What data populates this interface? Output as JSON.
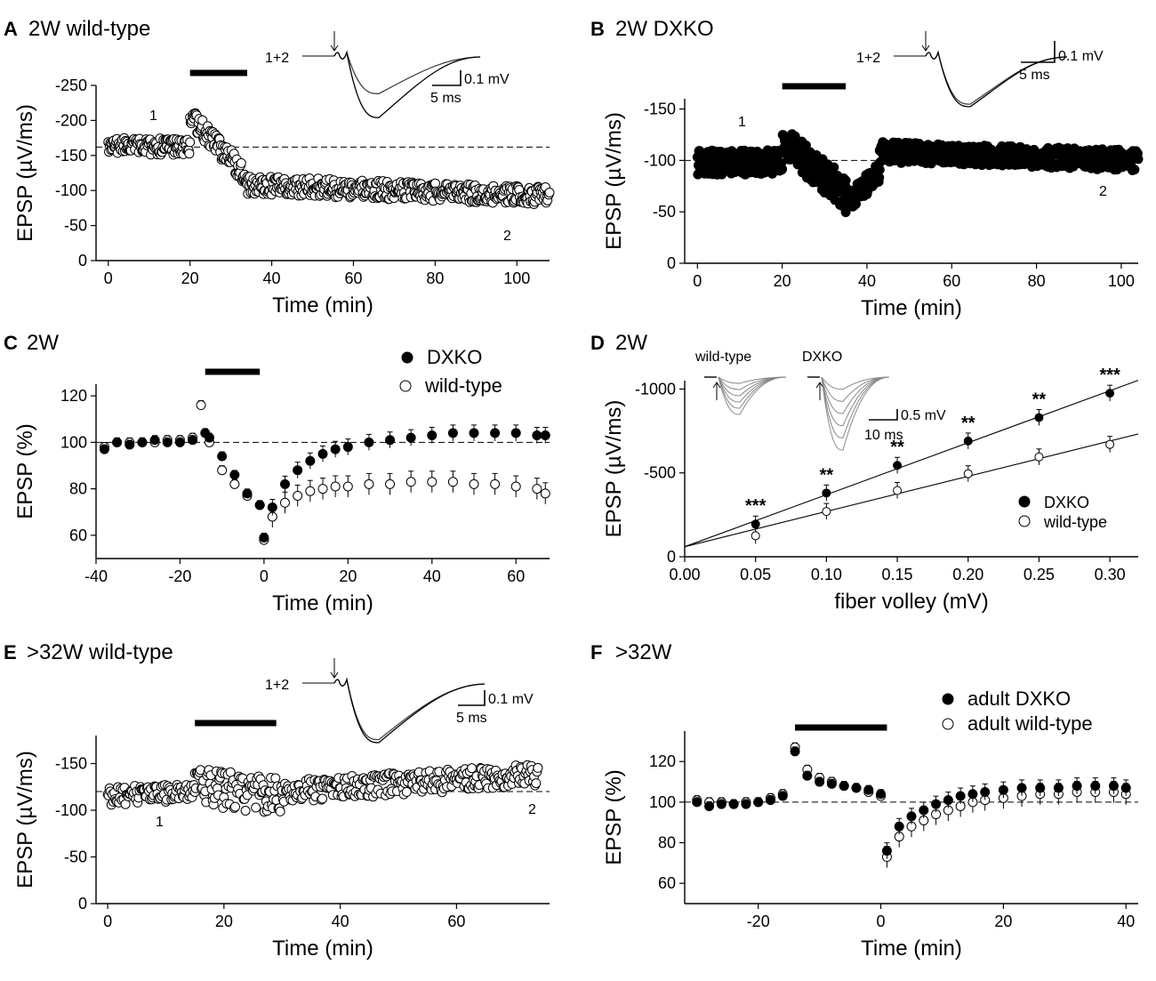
{
  "colors": {
    "ink": "#000000",
    "paper": "#ffffff",
    "trace": "#444444",
    "trace_light": "#888888"
  },
  "chart_data": [
    {
      "id": "A",
      "type": "scatter",
      "letter": "A",
      "title": "2W wild-type",
      "xlabel": "Time (min)",
      "ylabel": "EPSP (µV/ms)",
      "xlim": [
        -3,
        108
      ],
      "ylim": [
        0,
        -250
      ],
      "xticks": [
        0,
        20,
        40,
        60,
        80,
        100
      ],
      "yticks": [
        0,
        -50,
        -100,
        -150,
        -200,
        -250
      ],
      "baseline": -162,
      "bar": [
        20,
        34
      ],
      "labels": [
        "1",
        "2"
      ],
      "trace": {
        "tag": "1+2",
        "scale_amp": "0.1 mV",
        "scale_time": "5 ms"
      },
      "series": [
        {
          "name": "wild-type",
          "filled": false,
          "segments": [
            [
              0,
              20,
              -163,
              -163,
              12
            ],
            [
              20,
              34,
              -205,
              -120,
              14
            ],
            [
              34,
              108,
              -108,
              -92,
              13
            ]
          ]
        }
      ]
    },
    {
      "id": "B",
      "type": "scatter",
      "letter": "B",
      "title": "2W DXKO",
      "xlabel": "Time (min)",
      "ylabel": "EPSP (µV/ms)",
      "xlim": [
        -3,
        104
      ],
      "ylim": [
        0,
        -160
      ],
      "xticks": [
        0,
        20,
        40,
        60,
        80,
        100
      ],
      "yticks": [
        0,
        -50,
        -100,
        -150
      ],
      "baseline": -100,
      "bar": [
        20,
        35
      ],
      "labels": [
        "1",
        "2"
      ],
      "trace": {
        "tag": "1+2",
        "scale_amp": "0.1 mV",
        "scale_time": "5 ms"
      },
      "series": [
        {
          "name": "DXKO",
          "filled": true,
          "segments": [
            [
              0,
              20,
              -98,
              -98,
              12
            ],
            [
              20,
              35,
              -118,
              -68,
              16
            ],
            [
              35,
              43,
              -58,
              -88,
              10
            ],
            [
              43,
              104,
              -108,
              -100,
              10
            ]
          ]
        }
      ]
    },
    {
      "id": "C",
      "type": "line",
      "letter": "C",
      "title": "2W",
      "xlabel": "Time (min)",
      "ylabel": "EPSP (%)",
      "xlim": [
        -40,
        68
      ],
      "ylim": [
        50,
        125
      ],
      "xticks": [
        -40,
        -20,
        0,
        20,
        40,
        60
      ],
      "yticks": [
        60,
        80,
        100,
        120
      ],
      "baseline": 100,
      "bar": [
        -14,
        -1
      ],
      "legend": [
        "DXKO",
        "wild-type"
      ],
      "series": [
        {
          "name": "DXKO",
          "filled": true,
          "x": [
            -38,
            -35,
            -32,
            -29,
            -26,
            -23,
            -20,
            -17,
            -14,
            -13,
            -10,
            -7,
            -4,
            -1,
            0,
            2,
            5,
            8,
            11,
            14,
            17,
            20,
            25,
            30,
            35,
            40,
            45,
            50,
            55,
            60,
            65,
            67
          ],
          "y": [
            97,
            100,
            99,
            100,
            101,
            100,
            100,
            101,
            104,
            102,
            94,
            86,
            78,
            73,
            59,
            72,
            82,
            88,
            92,
            95,
            97,
            98,
            100,
            101,
            102,
            103,
            104,
            104,
            104,
            104,
            103,
            103
          ]
        },
        {
          "name": "wild-type",
          "filled": false,
          "x": [
            -38,
            -35,
            -32,
            -29,
            -26,
            -23,
            -20,
            -17,
            -15,
            -13,
            -10,
            -7,
            -4,
            -1,
            0,
            2,
            5,
            8,
            11,
            14,
            17,
            20,
            25,
            30,
            35,
            40,
            45,
            50,
            55,
            60,
            65,
            67
          ],
          "y": [
            98,
            100,
            100,
            100,
            100,
            101,
            101,
            102,
            116,
            100,
            88,
            82,
            77,
            73,
            58,
            68,
            74,
            77,
            79,
            80,
            81,
            81,
            82,
            82,
            83,
            83,
            83,
            82,
            82,
            81,
            80,
            78
          ]
        }
      ]
    },
    {
      "id": "D",
      "type": "scatter",
      "letter": "D",
      "title": "2W",
      "xlabel": "fiber volley (mV)",
      "ylabel": "EPSP (µV/ms)",
      "xlim": [
        0,
        0.32
      ],
      "ylim": [
        0,
        -1050
      ],
      "xticks": [
        0.0,
        0.05,
        0.1,
        0.15,
        0.2,
        0.25,
        0.3
      ],
      "xtick_labels": [
        "0.00",
        "0.05",
        "0.10",
        "0.15",
        "0.20",
        "0.25",
        "0.30"
      ],
      "yticks": [
        0,
        -500,
        -1000
      ],
      "legend": [
        "DXKO",
        "wild-type"
      ],
      "significance": [
        "***",
        "**",
        "**",
        "**",
        "**",
        "***"
      ],
      "trace_labels": [
        "wild-type",
        "DXKO"
      ],
      "trace": {
        "scale_amp": "0.5 mV",
        "scale_time": "10 ms"
      },
      "series": [
        {
          "name": "DXKO",
          "filled": true,
          "x": [
            0.05,
            0.1,
            0.15,
            0.2,
            0.25,
            0.3
          ],
          "y": [
            -195,
            -380,
            -545,
            -690,
            -830,
            -975
          ],
          "fit": [
            -60,
            -3100
          ]
        },
        {
          "name": "wild-type",
          "filled": false,
          "x": [
            0.05,
            0.1,
            0.15,
            0.2,
            0.25,
            0.3
          ],
          "y": [
            -125,
            -270,
            -395,
            -495,
            -595,
            -670
          ],
          "fit": [
            -60,
            -2100
          ]
        }
      ]
    },
    {
      "id": "E",
      "type": "scatter",
      "letter": "E",
      "title": ">32W wild-type",
      "xlabel": "Time (min)",
      "ylabel": "EPSP (µV/ms)",
      "xlim": [
        -2,
        76
      ],
      "ylim": [
        0,
        -180
      ],
      "xticks": [
        0,
        20,
        40,
        60
      ],
      "yticks": [
        0,
        -50,
        -100,
        -150
      ],
      "baseline": -120,
      "bar": [
        15,
        29
      ],
      "labels": [
        "1",
        "2"
      ],
      "trace": {
        "tag": "1+2",
        "scale_amp": "0.1 mV",
        "scale_time": "5 ms"
      },
      "series": [
        {
          "name": "wild-type",
          "filled": false,
          "segments": [
            [
              0,
              15,
              -115,
              -120,
              10
            ],
            [
              15,
              30,
              -125,
              -115,
              20
            ],
            [
              30,
              74,
              -120,
              -138,
              12
            ]
          ]
        }
      ]
    },
    {
      "id": "F",
      "type": "line",
      "letter": "F",
      "title": ">32W",
      "xlabel": "Time (min)",
      "ylabel": "EPSP (%)",
      "xlim": [
        -32,
        42
      ],
      "ylim": [
        50,
        135
      ],
      "xticks": [
        -20,
        0,
        20,
        40
      ],
      "yticks": [
        60,
        80,
        100,
        120
      ],
      "baseline": 100,
      "bar": [
        -14,
        1
      ],
      "legend": [
        "adult DXKO",
        "adult wild-type"
      ],
      "series": [
        {
          "name": "adult DXKO",
          "filled": true,
          "x": [
            -30,
            -28,
            -26,
            -24,
            -22,
            -20,
            -18,
            -16,
            -14,
            -12,
            -10,
            -8,
            -6,
            -4,
            -2,
            0,
            1,
            3,
            5,
            7,
            9,
            11,
            13,
            15,
            17,
            20,
            23,
            26,
            29,
            32,
            35,
            38,
            40
          ],
          "y": [
            100,
            98,
            99,
            99,
            99,
            100,
            101,
            103,
            125,
            113,
            110,
            109,
            108,
            107,
            106,
            104,
            76,
            88,
            93,
            96,
            99,
            101,
            103,
            104,
            105,
            106,
            107,
            107,
            107,
            108,
            108,
            108,
            107
          ]
        },
        {
          "name": "adult wild-type",
          "filled": false,
          "x": [
            -30,
            -28,
            -26,
            -24,
            -22,
            -20,
            -18,
            -16,
            -14,
            -12,
            -10,
            -8,
            -6,
            -4,
            -2,
            0,
            1,
            3,
            5,
            7,
            9,
            11,
            13,
            15,
            17,
            20,
            23,
            26,
            29,
            32,
            35,
            38,
            40
          ],
          "y": [
            101,
            100,
            100,
            99,
            100,
            100,
            102,
            104,
            127,
            116,
            112,
            110,
            108,
            107,
            105,
            103,
            73,
            83,
            88,
            91,
            94,
            96,
            98,
            100,
            101,
            102,
            103,
            104,
            104,
            105,
            105,
            105,
            104
          ]
        }
      ]
    }
  ]
}
